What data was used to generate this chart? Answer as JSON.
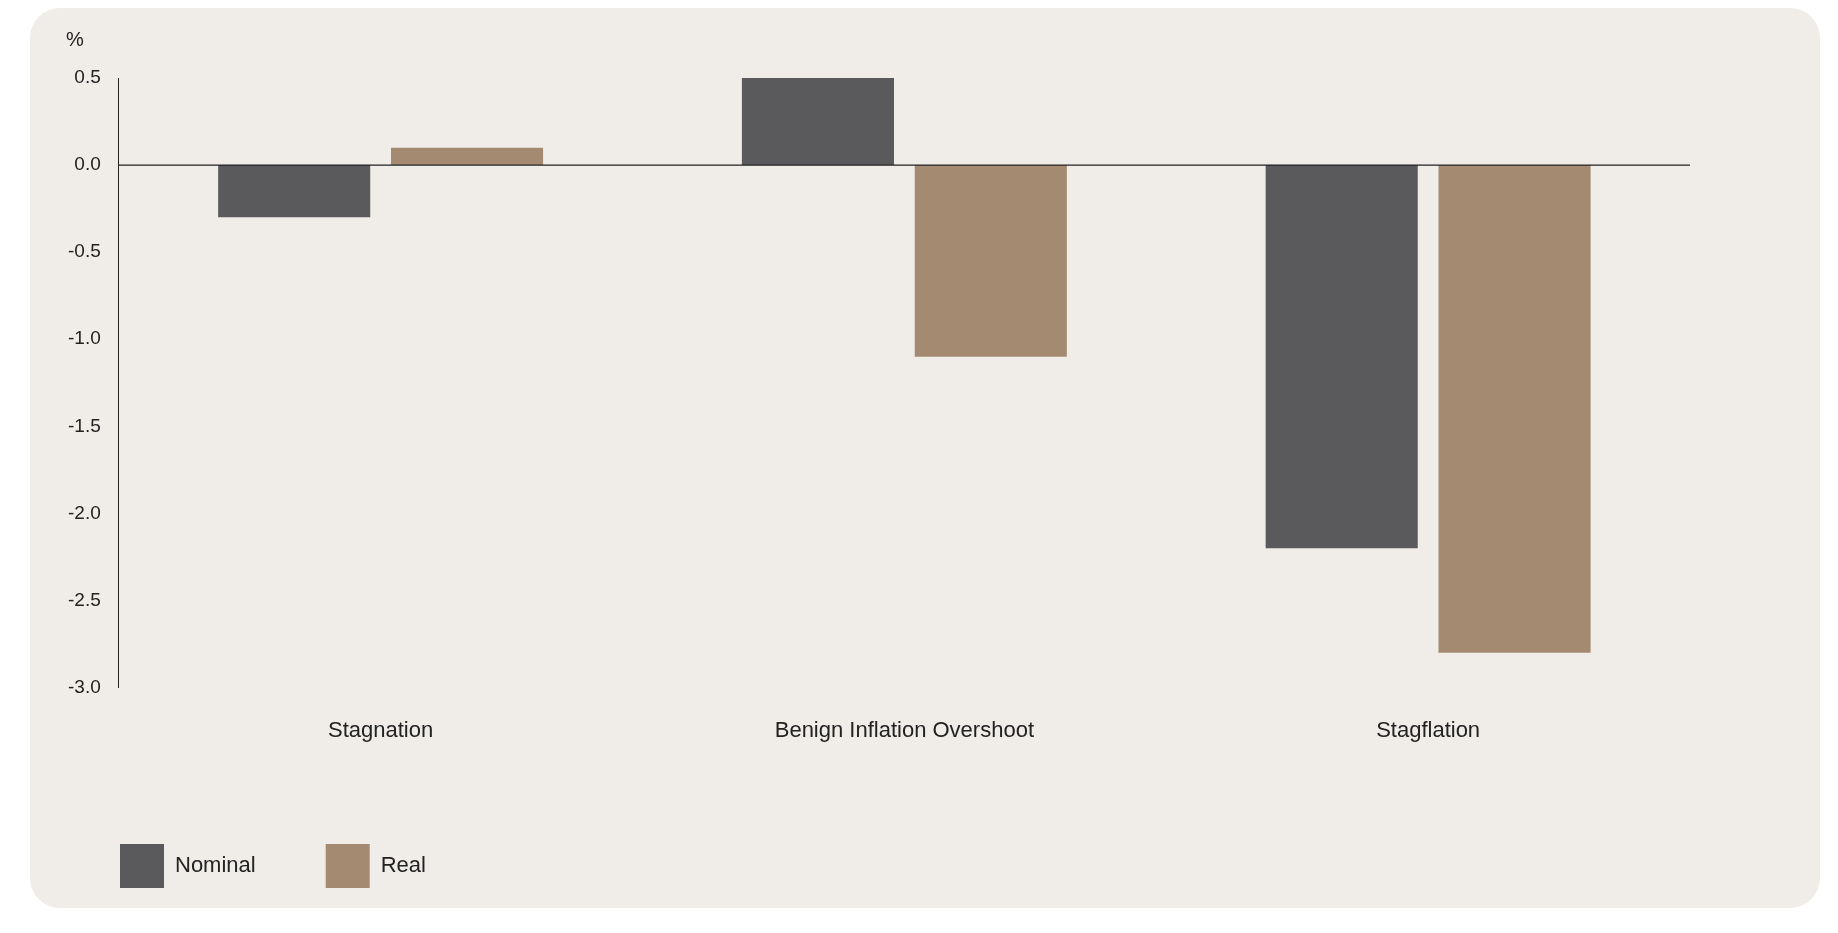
{
  "chart_data": {
    "type": "bar",
    "ylabel": "%",
    "categories": [
      "Stagnation",
      "Benign Inflation Overshoot",
      "Stagflation"
    ],
    "series": [
      {
        "name": "Nominal",
        "color": "#5a5a5c",
        "values": [
          -0.3,
          0.5,
          -2.2
        ]
      },
      {
        "name": "Real",
        "color": "#a38a71",
        "values": [
          0.1,
          -1.1,
          -2.8
        ]
      }
    ],
    "ylim": [
      -3,
      0.5
    ],
    "yticks": [
      {
        "value": 0.5,
        "label": "0.5"
      },
      {
        "value": 0,
        "label": "0.0"
      },
      {
        "value": -0.5,
        "label": "-0.5"
      },
      {
        "value": -1,
        "label": "-1.0"
      },
      {
        "value": -1.5,
        "label": "-1.5"
      },
      {
        "value": -2,
        "label": "-2.0"
      },
      {
        "value": -2.5,
        "label": "-2.5"
      },
      {
        "value": -3,
        "label": "-3.0"
      }
    ],
    "ref_lines": [
      {
        "axis": "y",
        "value": 0,
        "color": "#222222"
      }
    ],
    "grid": false,
    "legend": "bottom left"
  }
}
